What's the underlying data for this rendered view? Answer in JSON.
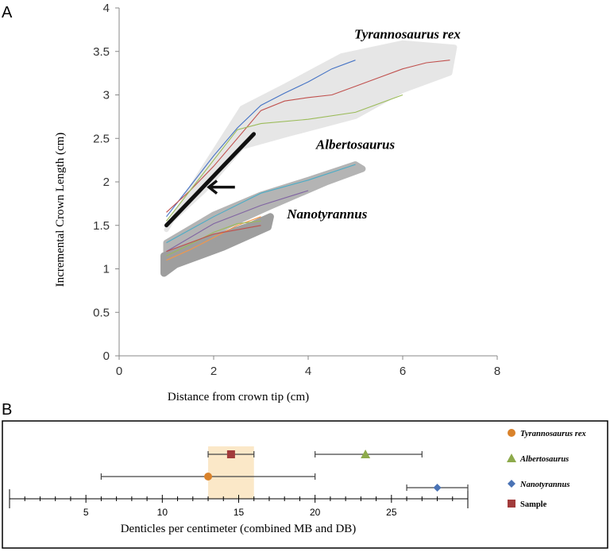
{
  "chart_data": [
    {
      "panel_label": "A",
      "type": "line",
      "xlabel": "Distance from crown tip (cm)",
      "ylabel": "Incremental Crown Length (cm)",
      "xlim": [
        0,
        8
      ],
      "ylim": [
        0,
        4
      ],
      "x_ticks": [
        "0",
        "2",
        "4",
        "6",
        "8"
      ],
      "y_ticks": [
        "0",
        "0.5",
        "1",
        "1.5",
        "2",
        "2.5",
        "3",
        "3.5",
        "4"
      ],
      "grid": false,
      "group_labels": [
        {
          "text": "Tyrannosaurus rex",
          "x": 6.1,
          "y": 3.65
        },
        {
          "text": "Albertosaurus",
          "x": 5.0,
          "y": 2.38
        },
        {
          "text": "Nanotyrannus",
          "x": 4.4,
          "y": 1.58
        }
      ],
      "envelope_points": {
        "trex": [
          [
            1.0,
            1.45
          ],
          [
            1.6,
            2.0
          ],
          [
            2.6,
            2.85
          ],
          [
            3.5,
            3.1
          ],
          [
            4.7,
            3.45
          ],
          [
            6.0,
            3.6
          ],
          [
            7.1,
            3.55
          ],
          [
            7.0,
            3.25
          ],
          [
            6.0,
            3.05
          ],
          [
            5.0,
            2.75
          ],
          [
            3.6,
            2.55
          ],
          [
            2.6,
            2.4
          ],
          [
            1.8,
            1.9
          ],
          [
            1.1,
            1.55
          ]
        ],
        "albertosaurus": [
          [
            1.0,
            1.3
          ],
          [
            2.0,
            1.62
          ],
          [
            3.0,
            1.85
          ],
          [
            4.0,
            2.02
          ],
          [
            5.0,
            2.2
          ],
          [
            5.15,
            2.15
          ],
          [
            4.4,
            2.0
          ],
          [
            3.2,
            1.72
          ],
          [
            2.1,
            1.45
          ],
          [
            1.0,
            1.08
          ]
        ],
        "nanotyrannus": [
          [
            0.95,
            1.15
          ],
          [
            1.8,
            1.32
          ],
          [
            2.8,
            1.5
          ],
          [
            3.0,
            1.55
          ],
          [
            3.2,
            1.6
          ],
          [
            3.15,
            1.48
          ],
          [
            2.2,
            1.25
          ],
          [
            1.2,
            1.05
          ],
          [
            0.95,
            0.95
          ]
        ]
      },
      "series": [
        {
          "color": "#4472C4",
          "x": [
            1,
            1.5,
            2,
            2.5,
            3,
            3.5,
            4,
            4.5,
            5
          ],
          "y": [
            1.6,
            1.95,
            2.3,
            2.62,
            2.88,
            3.02,
            3.15,
            3.3,
            3.4
          ]
        },
        {
          "color": "#C0504D",
          "x": [
            1,
            1.5,
            2,
            2.5,
            3,
            3.5,
            4,
            4.5,
            5,
            5.5,
            6,
            6.5,
            7
          ],
          "y": [
            1.65,
            1.9,
            2.18,
            2.5,
            2.82,
            2.93,
            2.97,
            3.0,
            3.1,
            3.2,
            3.3,
            3.37,
            3.4
          ]
        },
        {
          "color": "#9BBB59",
          "x": [
            1,
            1.5,
            2,
            2.5,
            3,
            4,
            5,
            6
          ],
          "y": [
            1.55,
            1.9,
            2.25,
            2.6,
            2.67,
            2.72,
            2.8,
            3.0
          ]
        },
        {
          "color": "#4BACC6",
          "x": [
            1,
            2,
            3,
            4,
            5
          ],
          "y": [
            1.3,
            1.6,
            1.87,
            2.02,
            2.2
          ]
        },
        {
          "color": "#8064A2",
          "x": [
            1,
            2,
            3,
            4
          ],
          "y": [
            1.2,
            1.52,
            1.73,
            1.9
          ]
        },
        {
          "color": "#F79646",
          "x": [
            1,
            1.5,
            2,
            2.5,
            3
          ],
          "y": [
            1.1,
            1.22,
            1.36,
            1.5,
            1.6
          ]
        },
        {
          "color": "#9BBB59",
          "x": [
            1,
            1.5,
            2,
            2.5,
            3
          ],
          "y": [
            1.15,
            1.28,
            1.42,
            1.52,
            1.55
          ]
        },
        {
          "color": "#C0504D",
          "x": [
            1,
            2,
            3
          ],
          "y": [
            1.2,
            1.4,
            1.5
          ]
        }
      ],
      "annotations": [
        {
          "kind": "thick-line",
          "color": "#111111",
          "x": [
            1.0,
            2.85
          ],
          "y": [
            1.5,
            2.55
          ]
        },
        {
          "kind": "arrow",
          "color": "#111111",
          "from": [
            2.45,
            1.94
          ],
          "to": [
            1.9,
            1.94
          ]
        }
      ]
    },
    {
      "panel_label": "B",
      "type": "scatter",
      "xlabel": "Denticles per centimeter (combined MB and DB)",
      "xlim": [
        0,
        30
      ],
      "x_ticks": [
        "5",
        "10",
        "15",
        "20",
        "25"
      ],
      "legend_position": "right",
      "highlight_band": {
        "x": [
          13,
          16
        ],
        "color": "#FBE8C8"
      },
      "series": [
        {
          "name": "Tyrannosaurus rex",
          "marker": "circle",
          "color": "#D9822B",
          "x": 13,
          "err": [
            6,
            20
          ],
          "row": 3
        },
        {
          "name": "Albertosaurus",
          "marker": "triangle",
          "color": "#8DAA4B",
          "x": 23.3,
          "err": [
            20,
            27
          ],
          "row": 1
        },
        {
          "name": "Nanotyrannus",
          "marker": "diamond",
          "color": "#4A73B5",
          "x": 28,
          "err": [
            26,
            30
          ],
          "row": 4
        },
        {
          "name": "Sample",
          "marker": "square",
          "color": "#A23B3B",
          "x": 14.5,
          "err": [
            13,
            16
          ],
          "row": 1
        }
      ]
    }
  ]
}
